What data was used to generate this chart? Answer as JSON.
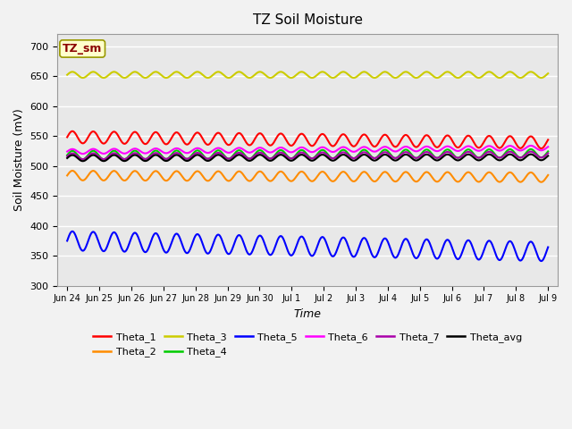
{
  "title": "TZ Soil Moisture",
  "xlabel": "Time",
  "ylabel": "Soil Moisture (mV)",
  "ylim": [
    300,
    720
  ],
  "yticks": [
    300,
    350,
    400,
    450,
    500,
    550,
    600,
    650,
    700
  ],
  "bg_color": "#e8e8e8",
  "fig_color": "#f2f2f2",
  "series": {
    "Theta_1": {
      "color": "#ff0000",
      "base": 548,
      "amp": 10,
      "period": 0.65,
      "trend": -0.6
    },
    "Theta_2": {
      "color": "#ff8c00",
      "base": 484,
      "amp": 8,
      "period": 0.65,
      "trend": -0.2
    },
    "Theta_3": {
      "color": "#cccc00",
      "base": 652,
      "amp": 5,
      "period": 0.65,
      "trend": 0.0
    },
    "Theta_4": {
      "color": "#00cc00",
      "base": 518,
      "amp": 7,
      "period": 0.65,
      "trend": 0.2
    },
    "Theta_5": {
      "color": "#0000ff",
      "base": 375,
      "amp": 16,
      "period": 0.65,
      "trend": -1.2
    },
    "Theta_6": {
      "color": "#ff00ff",
      "base": 524,
      "amp": 4,
      "period": 0.65,
      "trend": 0.4
    },
    "Theta_7": {
      "color": "#aa00aa",
      "base": 516,
      "amp": 5,
      "period": 0.65,
      "trend": 0.2
    },
    "Theta_avg": {
      "color": "#000000",
      "base": 513,
      "amp": 5,
      "period": 0.65,
      "trend": 0.1
    }
  },
  "x_tick_labels": [
    "Jun 24",
    "Jun 25",
    "Jun 26",
    "Jun 27",
    "Jun 28",
    "Jun 29",
    "Jun 30",
    "Jul 1",
    "Jul 2",
    "Jul 3",
    "Jul 4",
    "Jul 5",
    "Jul 6",
    "Jul 7",
    "Jul 8",
    "Jul 9"
  ],
  "tz_sm_box_color": "#ffffcc",
  "tz_sm_text_color": "#8b0000",
  "n_points": 1500
}
